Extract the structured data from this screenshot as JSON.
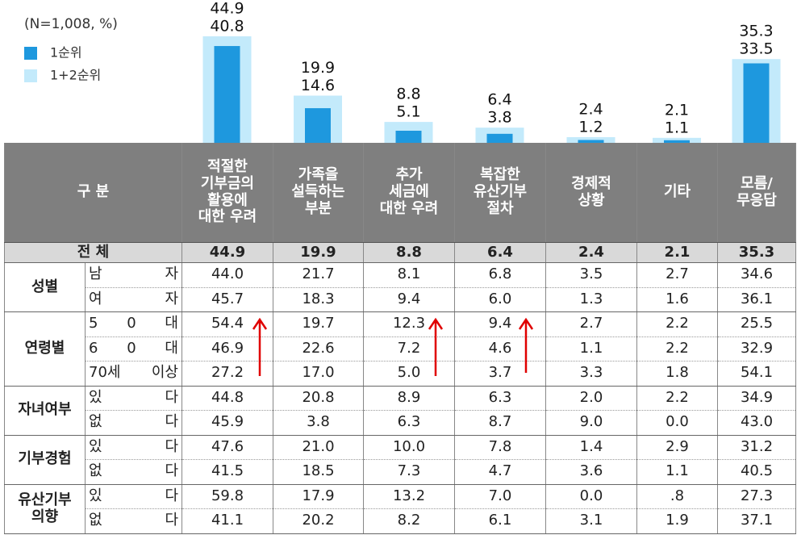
{
  "chart_data": {
    "type": "bar",
    "note": "(N=1,008,  %)",
    "categories": [
      "적절한\n기부금의\n활용에\n대한 우려",
      "가족을\n설득하는\n부분",
      "추가\n세금에\n대한 우려",
      "복잡한\n유산기부\n절차",
      "경제적\n상황",
      "기타",
      "모름/\n무응답"
    ],
    "series": [
      {
        "name": "1순위",
        "color": "#1e98de",
        "values": [
          40.8,
          14.6,
          5.1,
          3.8,
          1.2,
          1.1,
          33.5
        ]
      },
      {
        "name": "1+2순위",
        "color": "#c3eafb",
        "values": [
          44.9,
          19.9,
          8.8,
          6.4,
          2.4,
          2.1,
          35.3
        ]
      }
    ]
  },
  "table": {
    "header_label": "구 분",
    "total_label": "전 체",
    "groups": [
      {
        "label": "성별",
        "rows": [
          {
            "label": "남 자",
            "cells": [
              "44.0",
              "21.7",
              "8.1",
              "6.8",
              "3.5",
              "2.7",
              "34.6"
            ]
          },
          {
            "label": "여 자",
            "cells": [
              "45.7",
              "18.3",
              "9.4",
              "6.0",
              "1.3",
              "1.6",
              "36.1"
            ]
          }
        ]
      },
      {
        "label": "연령별",
        "rows": [
          {
            "label": "5 0 대",
            "cells": [
              "54.4",
              "19.7",
              "12.3",
              "9.4",
              "2.7",
              "2.2",
              "25.5"
            ]
          },
          {
            "label": "6 0 대",
            "cells": [
              "46.9",
              "22.6",
              "7.2",
              "4.6",
              "1.1",
              "2.2",
              "32.9"
            ]
          },
          {
            "label": "70세 이상",
            "cells": [
              "27.2",
              "17.0",
              "5.0",
              "3.7",
              "3.3",
              "1.8",
              "54.1"
            ]
          }
        ]
      },
      {
        "label": "자녀여부",
        "rows": [
          {
            "label": "있 다",
            "cells": [
              "44.8",
              "20.8",
              "8.9",
              "6.3",
              "2.0",
              "2.2",
              "34.9"
            ]
          },
          {
            "label": "없 다",
            "cells": [
              "45.9",
              "3.8",
              "6.3",
              "8.7",
              "9.0",
              "0.0",
              "43.0"
            ]
          }
        ]
      },
      {
        "label": "기부경험",
        "rows": [
          {
            "label": "있 다",
            "cells": [
              "47.6",
              "21.0",
              "10.0",
              "7.8",
              "1.4",
              "2.9",
              "31.2"
            ]
          },
          {
            "label": "없 다",
            "cells": [
              "41.5",
              "18.5",
              "7.3",
              "4.7",
              "3.6",
              "1.1",
              "40.5"
            ]
          }
        ]
      },
      {
        "label": "유산기부\n의향",
        "rows": [
          {
            "label": "있 다",
            "cells": [
              "59.8",
              "17.9",
              "13.2",
              "7.0",
              "0.0",
              ".8",
              "27.3"
            ]
          },
          {
            "label": "없 다",
            "cells": [
              "41.1",
              "20.2",
              "8.2",
              "6.1",
              "3.1",
              "1.9",
              "37.1"
            ]
          }
        ]
      }
    ]
  }
}
